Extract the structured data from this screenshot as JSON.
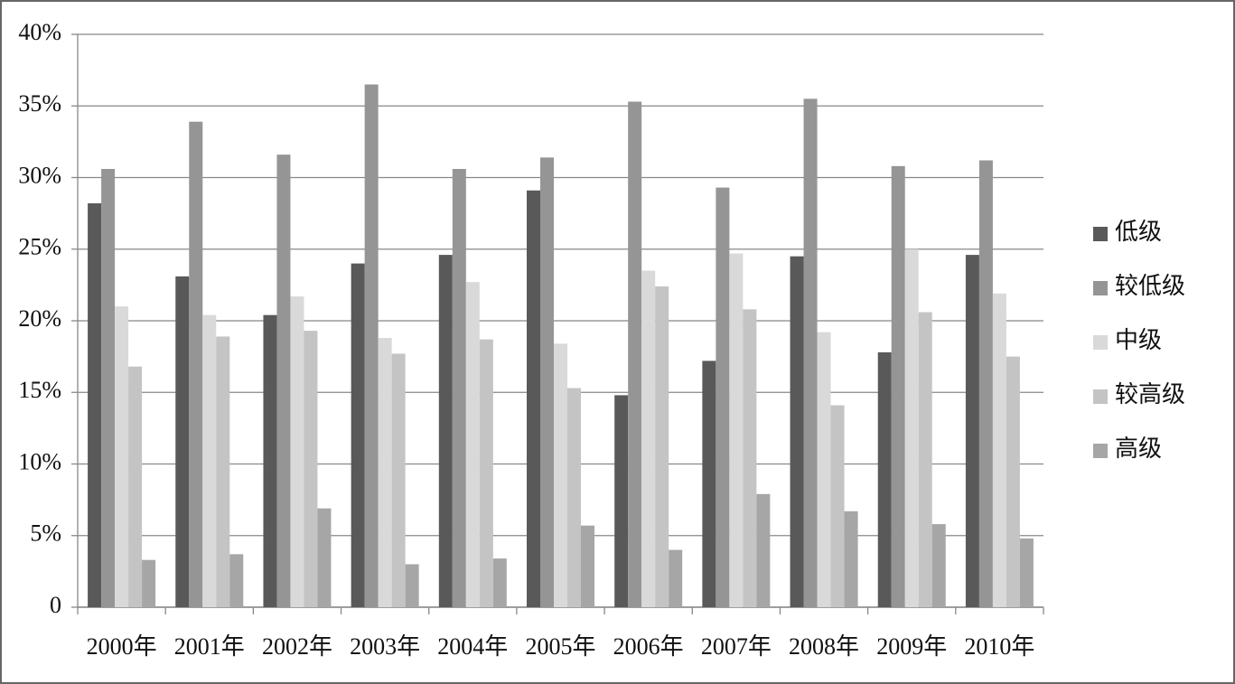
{
  "chart_data": {
    "type": "bar",
    "categories": [
      "2000年",
      "2001年",
      "2002年",
      "2003年",
      "2004年",
      "2005年",
      "2006年",
      "2007年",
      "2008年",
      "2009年",
      "2010年"
    ],
    "series": [
      {
        "name": "低级",
        "color": "#595959",
        "values": [
          28.2,
          23.1,
          20.4,
          24.0,
          24.6,
          29.1,
          14.8,
          17.2,
          24.5,
          17.8,
          24.6
        ]
      },
      {
        "name": "较低级",
        "color": "#959595",
        "values": [
          30.6,
          33.9,
          31.6,
          36.5,
          30.6,
          31.4,
          35.3,
          29.3,
          35.5,
          30.8,
          31.2
        ]
      },
      {
        "name": "中级",
        "color": "#d9d9d9",
        "values": [
          21.0,
          20.4,
          21.7,
          18.8,
          22.7,
          18.4,
          23.5,
          24.7,
          19.2,
          25.0,
          21.9
        ]
      },
      {
        "name": "较高级",
        "color": "#c4c4c4",
        "values": [
          16.8,
          18.9,
          19.3,
          17.7,
          18.7,
          15.3,
          22.4,
          20.8,
          14.1,
          20.6,
          17.5
        ]
      },
      {
        "name": "高级",
        "color": "#a6a6a6",
        "values": [
          3.3,
          3.7,
          6.9,
          3.0,
          3.4,
          5.7,
          4.0,
          7.9,
          6.7,
          5.8,
          4.8
        ]
      }
    ],
    "ylim": [
      0,
      40
    ],
    "yticks": [
      0,
      {
        "value": 5,
        "label": "5%"
      },
      {
        "value": 10,
        "label": "10%"
      },
      {
        "value": 15,
        "label": "15%"
      },
      {
        "value": 20,
        "label": "20%"
      },
      {
        "value": 25,
        "label": "25%"
      },
      {
        "value": 30,
        "label": "30%"
      },
      {
        "value": 35,
        "label": "35%"
      },
      {
        "value": 40,
        "label": "40%"
      }
    ],
    "grid": true,
    "legend": "right"
  }
}
